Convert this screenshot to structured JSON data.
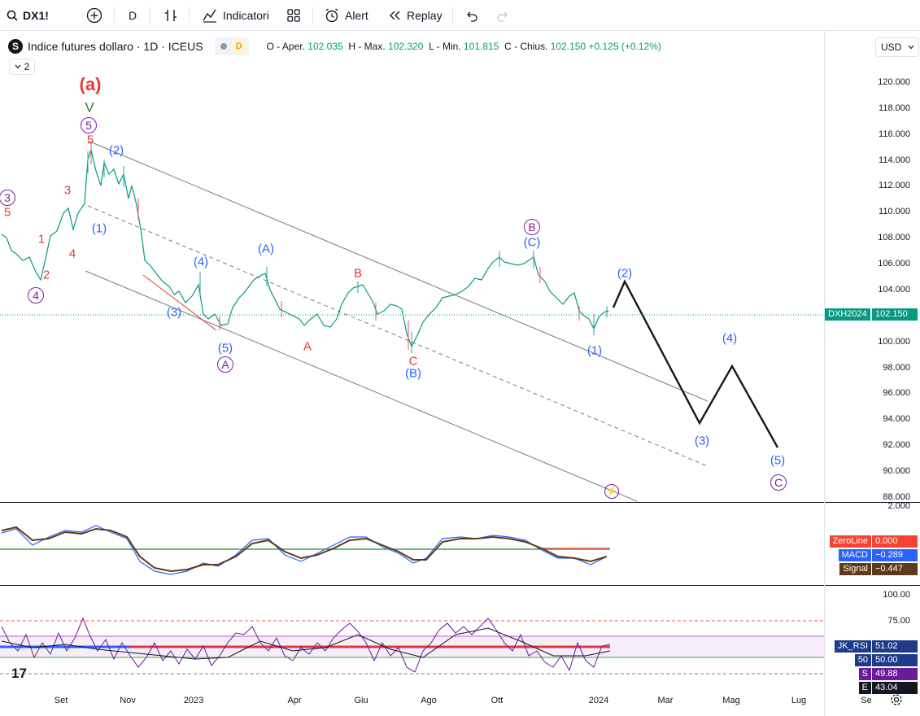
{
  "toolbar": {
    "symbol": "DX1!",
    "interval": "D",
    "indicators_label": "Indicatori",
    "alert_label": "Alert",
    "replay_label": "Replay"
  },
  "legend": {
    "logo_letter": "S",
    "title": "Indice futures dollaro",
    "timeframe": "1D",
    "exchange": "ICEUS",
    "badge": "D",
    "open_label": "O - Aper.",
    "open": "102.035",
    "high_label": "H - Max.",
    "high": "102.320",
    "low_label": "L - Min.",
    "low": "101.815",
    "close_label": "C - Chius.",
    "close": "102.150",
    "change": "+0.125 (+0.12%)"
  },
  "collapse_count": "2",
  "currency": "USD",
  "price_axis": [
    "120.000",
    "118.000",
    "116.000",
    "114.000",
    "112.000",
    "110.000",
    "108.000",
    "106.000",
    "104.000",
    "100.000",
    "98.000",
    "96.000",
    "94.000",
    "92.000",
    "90.000",
    "88.000"
  ],
  "price_tag": {
    "symbol": "DXH2024",
    "value": "102.150"
  },
  "macd_axis": "2.000",
  "macd_tags": [
    {
      "name": "ZeroLine",
      "value": "0.000",
      "color": "#f44336"
    },
    {
      "name": "MACD",
      "value": "−0.289",
      "color": "#2962ff"
    },
    {
      "name": "Signal",
      "value": "−0.447",
      "color": "#5d3a1a"
    }
  ],
  "rsi_axis": [
    "100.00",
    "75.00"
  ],
  "rsi_tags": [
    {
      "name": "JK_RSI",
      "value": "51.02",
      "color": "#1e3a8a"
    },
    {
      "name": "50",
      "value": "50.00",
      "color": "#1e3a8a"
    },
    {
      "name": "S",
      "value": "49.88",
      "color": "#6a1b9a"
    },
    {
      "name": "E",
      "value": "43.04",
      "color": "#131722"
    }
  ],
  "time_axis": [
    "Set",
    "Nov",
    "2023",
    "Apr",
    "Giu",
    "Ago",
    "Ott",
    "2024",
    "Mar",
    "Mag",
    "Lug",
    "Se"
  ],
  "waves": {
    "big_a": "(a)",
    "v": "V",
    "c5a": "5",
    "r5a": "5",
    "c3": "3",
    "r5b": "5",
    "r1": "1",
    "r3": "3",
    "r4": "4",
    "r2": "2",
    "c4": "4",
    "b2": "(2)",
    "b1": "(1)",
    "b4": "(4)",
    "b3": "(3)",
    "b5": "(5)",
    "cA": "A",
    "bA": "(A)",
    "rA": "A",
    "rB": "B",
    "rC": "C",
    "bB": "(B)",
    "cB": "B",
    "bC": "(C)",
    "f2": "(2)",
    "f1": "(1)",
    "f4": "(4)",
    "f3": "(3)",
    "f5": "(5)",
    "cC": "C"
  }
}
